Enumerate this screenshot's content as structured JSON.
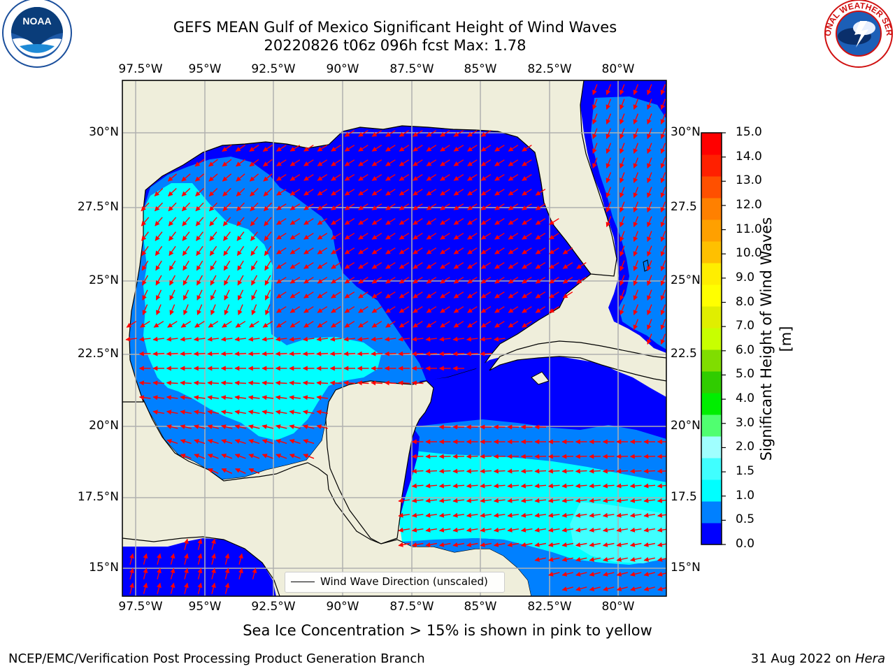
{
  "title": {
    "line1": "GEFS MEAN Gulf of Mexico Significant Height of Wind Waves",
    "line2": "20220826 t06z 096h fcst   Max: 1.78"
  },
  "logos": {
    "left": {
      "icon": "noaa-logo",
      "text": "NOAA"
    },
    "right": {
      "icon": "national-weather-service-logo",
      "text": "NATIONAL WEATHER SERVICE"
    }
  },
  "map": {
    "lon_ticks": [
      "97.5°W",
      "95°W",
      "92.5°W",
      "90°W",
      "87.5°W",
      "85°W",
      "82.5°W",
      "80°W"
    ],
    "lat_ticks_left": [
      "30°N",
      "27.5°N",
      "25°N",
      "22.5°N",
      "20°N",
      "17.5°N",
      "15°N"
    ],
    "lat_ticks_right": [
      "30°N",
      "27.5",
      "25°N",
      "22.5",
      "20°N",
      "17.5",
      "15°N"
    ],
    "lon_range": [
      -98,
      -78.2
    ],
    "lat_range": [
      14,
      31.6
    ],
    "grid": true,
    "colors": {
      "land": "#efeedb",
      "ocean_0_0.5": "#0000ff",
      "ocean_0.5_1.0": "#0080ff",
      "ocean_1.0_1.5": "#00ffff",
      "ocean_1.5_2.0": "#40ffff",
      "arrow": "#ff0000",
      "gridline": "#b0b0b0",
      "coastline": "#000000"
    },
    "legend": {
      "text": "Wind Wave Direction (unscaled)"
    }
  },
  "colorbar": {
    "label": "Significant Height of Wind Waves [m]",
    "ticks": [
      "15.0",
      "14.0",
      "13.0",
      "12.0",
      "11.0",
      "10.0",
      "9.0",
      "8.0",
      "7.0",
      "6.0",
      "5.0",
      "4.0",
      "3.0",
      "2.0",
      "1.5",
      "1.0",
      "0.5",
      "0.0"
    ],
    "colors": [
      "#0000ff",
      "#0080ff",
      "#00ffff",
      "#40ffff",
      "#a0ffff",
      "#50ff70",
      "#00ee00",
      "#30cc00",
      "#80dd00",
      "#c8ff00",
      "#e0ee00",
      "#ffff00",
      "#ffee00",
      "#ffc000",
      "#ffa000",
      "#ff8000",
      "#ff5000",
      "#ff2000",
      "#ff0000"
    ]
  },
  "footer": {
    "center": "Sea Ice Concentration > 15% is shown in pink to yellow",
    "left": "NCEP/EMC/Verification Post Processing Product Generation Branch",
    "right_date": "31 Aug 2022 on",
    "right_machine": "Hera"
  }
}
